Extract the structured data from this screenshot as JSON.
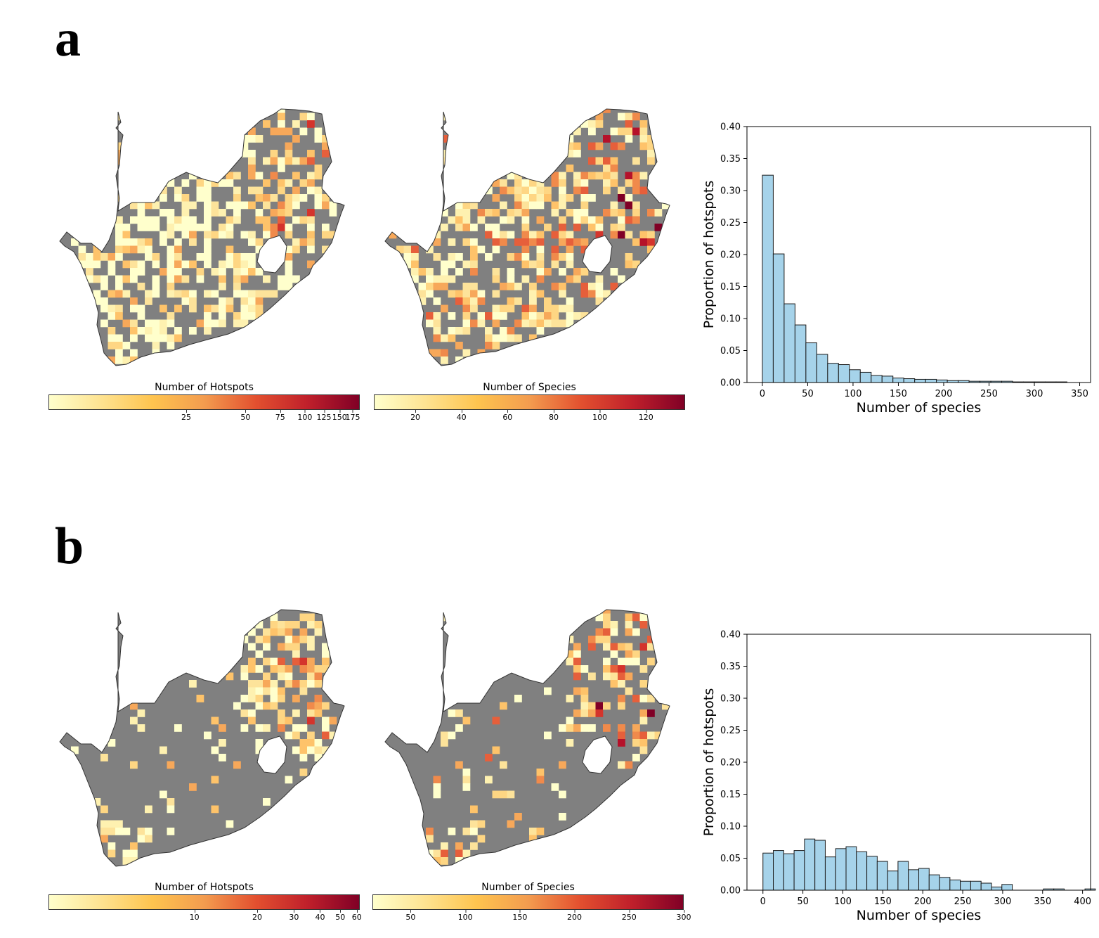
{
  "panels": [
    {
      "label": "a",
      "maps": [
        {
          "colorbar_title": "Number of Hotspots",
          "ticks": [
            "25",
            "50",
            "75",
            "100",
            "125",
            "150",
            "175"
          ],
          "tick_values": [
            25,
            50,
            75,
            100,
            125,
            150,
            175
          ],
          "scale": "log",
          "range": [
            5,
            190
          ]
        },
        {
          "colorbar_title": "Number of Species",
          "ticks": [
            "20",
            "40",
            "60",
            "80",
            "100",
            "120"
          ],
          "tick_values": [
            20,
            40,
            60,
            80,
            100,
            120
          ],
          "scale": "linear",
          "range": [
            2,
            137
          ]
        }
      ],
      "histogram": {
        "type": "bar",
        "xlabel": "Number of species",
        "ylabel": "Proportion of hotspots",
        "xlim": [
          -17,
          362
        ],
        "ylim": [
          0,
          0.4
        ],
        "xticks": [
          0,
          50,
          100,
          150,
          200,
          250,
          300,
          350
        ],
        "yticks": [
          "0.00",
          "0.05",
          "0.10",
          "0.15",
          "0.20",
          "0.25",
          "0.30",
          "0.35",
          "0.40"
        ],
        "bin_width": 12,
        "bin_start": 0,
        "values": [
          0.324,
          0.201,
          0.123,
          0.09,
          0.062,
          0.044,
          0.03,
          0.028,
          0.02,
          0.016,
          0.011,
          0.01,
          0.007,
          0.006,
          0.005,
          0.005,
          0.004,
          0.003,
          0.003,
          0.002,
          0.002,
          0.002,
          0.002,
          0.001,
          0.001,
          0.001,
          0.001,
          0.001,
          0.0,
          0.0,
          0.0,
          0.0,
          0.0,
          0.0,
          0.0,
          0.0,
          0.0,
          0.0,
          0.0,
          0.0
        ]
      }
    },
    {
      "label": "b",
      "maps": [
        {
          "colorbar_title": "Number of Hotspots",
          "ticks": [
            "10",
            "20",
            "30",
            "40",
            "50",
            "60"
          ],
          "tick_values": [
            10,
            20,
            30,
            40,
            50,
            60
          ],
          "scale": "log",
          "range": [
            2,
            62
          ]
        },
        {
          "colorbar_title": "Number of Species",
          "ticks": [
            "50",
            "100",
            "150",
            "200",
            "250",
            "300"
          ],
          "tick_values": [
            50,
            100,
            150,
            200,
            250,
            300
          ],
          "scale": "linear",
          "range": [
            15,
            300
          ]
        }
      ],
      "histogram": {
        "type": "bar",
        "xlabel": "Number of species",
        "ylabel": "Proportion of hotspots",
        "xlim": [
          -20,
          410
        ],
        "ylim": [
          0,
          0.4
        ],
        "xticks": [
          0,
          50,
          100,
          150,
          200,
          250,
          300,
          350,
          400
        ],
        "yticks": [
          "0.00",
          "0.05",
          "0.10",
          "0.15",
          "0.20",
          "0.25",
          "0.30",
          "0.35",
          "0.40"
        ],
        "bin_width": 13,
        "bin_start": 0,
        "values": [
          0.058,
          0.062,
          0.057,
          0.062,
          0.08,
          0.078,
          0.052,
          0.065,
          0.068,
          0.06,
          0.053,
          0.045,
          0.03,
          0.045,
          0.032,
          0.034,
          0.024,
          0.02,
          0.016,
          0.014,
          0.014,
          0.011,
          0.005,
          0.009,
          0.0,
          0.0,
          0.0,
          0.002,
          0.002,
          0.0,
          0.0,
          0.002
        ]
      }
    }
  ]
}
